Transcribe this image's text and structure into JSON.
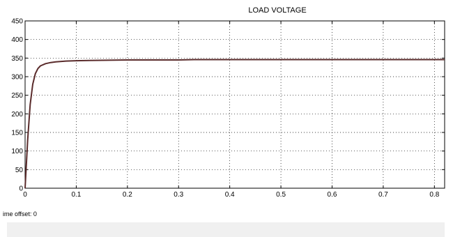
{
  "chart_data": {
    "type": "line",
    "title": "LOAD VOLTAGE",
    "xlabel": "",
    "ylabel": "",
    "xlim": [
      0,
      0.82
    ],
    "ylim": [
      0,
      450
    ],
    "x_ticks": [
      0,
      0.1,
      0.2,
      0.3,
      0.4,
      0.5,
      0.6,
      0.7,
      0.8
    ],
    "x_tick_labels": [
      "0",
      "0.1",
      "0.2",
      "0.3",
      "0.4",
      "0.5",
      "0.6",
      "0.7",
      "0.8"
    ],
    "y_ticks": [
      0,
      50,
      100,
      150,
      200,
      250,
      300,
      350,
      400,
      450
    ],
    "y_tick_labels": [
      "0",
      "50",
      "100",
      "150",
      "200",
      "250",
      "300",
      "350",
      "400",
      "450"
    ],
    "grid": true,
    "series": [
      {
        "color": "#5a2b2b",
        "x": [
          0,
          0.005,
          0.01,
          0.015,
          0.02,
          0.025,
          0.03,
          0.04,
          0.05,
          0.06,
          0.08,
          0.1,
          0.15,
          0.2,
          0.3,
          0.33,
          0.5,
          0.7,
          0.82
        ],
        "y": [
          0,
          130,
          225,
          280,
          308,
          322,
          329,
          335,
          338,
          340,
          342,
          343,
          344,
          345,
          345,
          346,
          346,
          346,
          346
        ]
      }
    ]
  },
  "status": {
    "time_offset_label": "ime offset:",
    "time_offset_value": "0"
  }
}
